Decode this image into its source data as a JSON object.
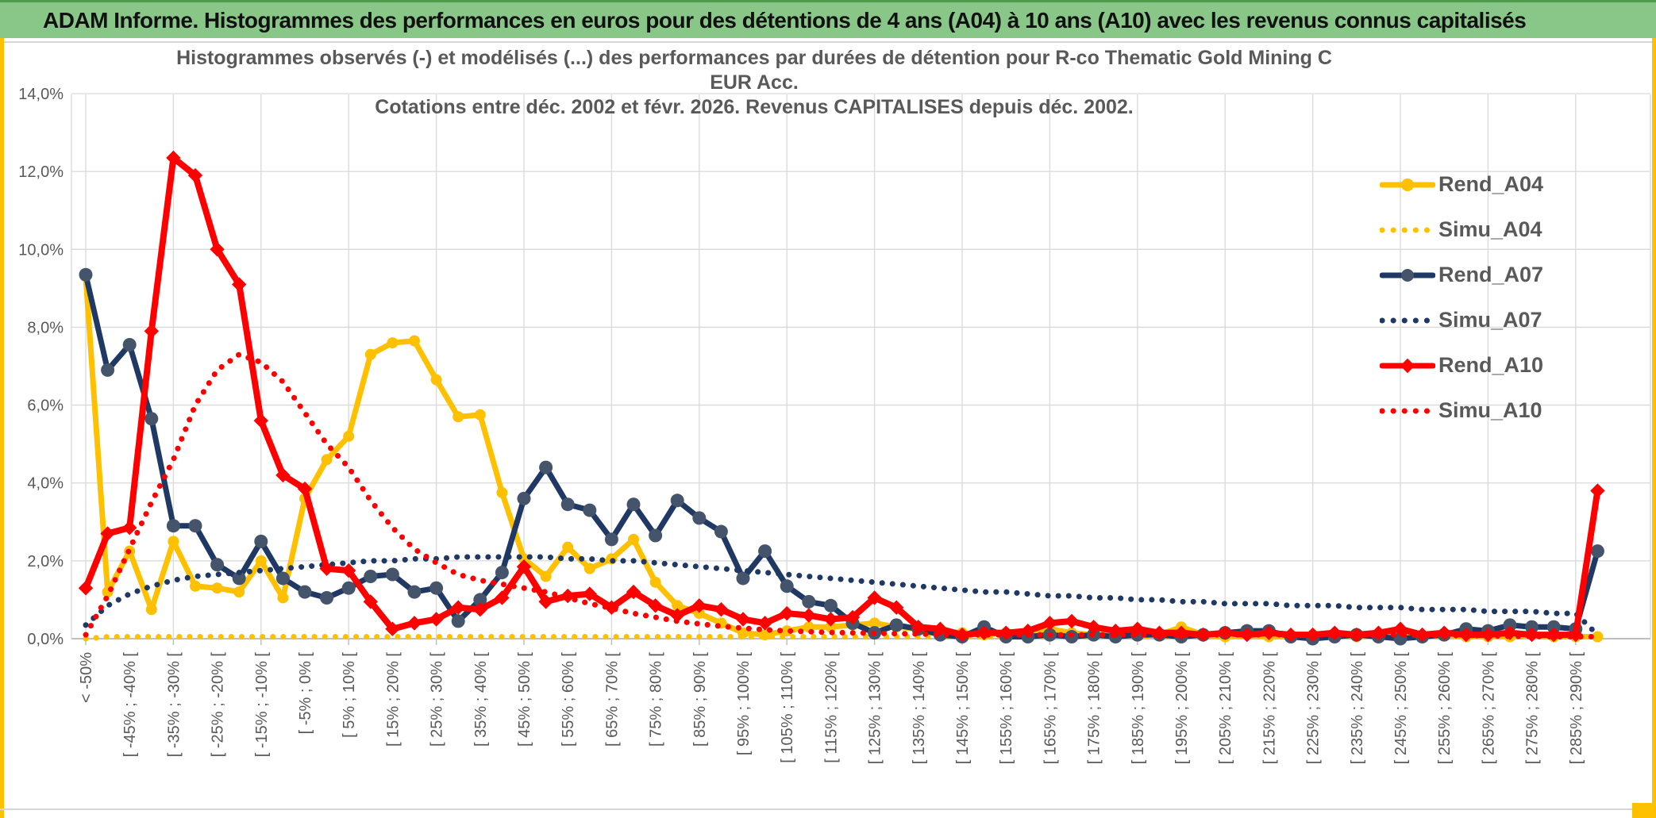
{
  "app": {
    "header_title": "ADAM Informe. Histogrammes des performances en euros pour des détentions de 4 ans (A04) à 10 ans (A10) avec les revenus connus capitalisés",
    "header_color": "#88C788",
    "accent_gold": "#FFC000",
    "text_gray": "#595959"
  },
  "chart_data": {
    "type": "line",
    "title_line1": "Histogrammes observés (-) et modélisés (...) des performances par durées de détention pour R-co Thematic Gold Mining C EUR Acc.",
    "title_line2": "Cotations entre déc. 2002 et févr. 2026. Revenus CAPITALISES depuis déc. 2002.",
    "y_axis": {
      "min": 0,
      "max": 14,
      "step": 2,
      "tick_suffix": "%",
      "decimal_separator": ",",
      "grid": true
    },
    "legend_position": "right",
    "categories": [
      "< -50%",
      "",
      "[ -45% ; -40% [",
      "",
      "[ -35% ; -30% [",
      "",
      "[ -25% ; -20% [",
      "",
      "[ -15% ; -10% [",
      "",
      "[ -5% ; 0% [",
      "",
      "[ 5% ; 10% [",
      "",
      "[ 15% ; 20% [",
      "",
      "[ 25% ; 30% [",
      "",
      "[ 35% ; 40% [",
      "",
      "[ 45% ; 50% [",
      "",
      "[ 55% ; 60% [",
      "",
      "[ 65% ; 70% [",
      "",
      "[ 75% ; 80% [",
      "",
      "[ 85% ; 90% [",
      "",
      "[ 95% ; 100% [",
      "",
      "[ 105% ; 110% [",
      "",
      "[ 115% ; 120% [",
      "",
      "[ 125% ; 130% [",
      "",
      "[ 135% ; 140% [",
      "",
      "[ 145% ; 150% [",
      "",
      "[ 155% ; 160% [",
      "",
      "[ 165% ; 170% [",
      "",
      "[ 175% ; 180% [",
      "",
      "[ 185% ; 190% [",
      "",
      "[ 195% ; 200% [",
      "",
      "[ 205% ; 210% [",
      "",
      "[ 215% ; 220% [",
      "",
      "[ 225% ; 230% [",
      "",
      "[ 235% ; 240% [",
      "",
      "[ 245% ; 250% [",
      "",
      "[ 255% ; 260% [",
      "",
      "[ 265% ; 270% [",
      "",
      "[ 275% ; 280% [",
      "",
      "[ 285% ; 290% [",
      ""
    ],
    "series": [
      {
        "name": "Rend_A04",
        "color": "#FFC000",
        "marker_color": "#FFC000",
        "style": "solid",
        "marker": "circle",
        "values": [
          9.3,
          1.2,
          2.25,
          0.75,
          2.5,
          1.35,
          1.3,
          1.2,
          2.0,
          1.05,
          3.6,
          4.6,
          5.2,
          7.3,
          7.6,
          7.65,
          6.65,
          5.7,
          5.75,
          3.75,
          2.05,
          1.6,
          2.35,
          1.8,
          2.05,
          2.55,
          1.45,
          0.85,
          0.65,
          0.4,
          0.15,
          0.1,
          0.2,
          0.3,
          0.3,
          0.35,
          0.4,
          0.3,
          0.25,
          0.2,
          0.15,
          0.1,
          0.15,
          0.1,
          0.25,
          0.15,
          0.1,
          0.1,
          0.1,
          0.1,
          0.3,
          0.1,
          0.05,
          0.1,
          0.05,
          0.05,
          0.1,
          0.05,
          0.05,
          0.1,
          0.05,
          0.05,
          0.1,
          0.05,
          0.05,
          0.05,
          0.1,
          0.05,
          0.05,
          0.05
        ]
      },
      {
        "name": "Simu_A04",
        "color": "#FFC000",
        "marker_color": "#FFC000",
        "style": "dotted",
        "marker": "none",
        "values": [
          0.0,
          0.05,
          0.05,
          0.05,
          0.05,
          0.05,
          0.05,
          0.05,
          0.05,
          0.05,
          0.05,
          0.05,
          0.05,
          0.05,
          0.05,
          0.05,
          0.05,
          0.05,
          0.05,
          0.05,
          0.05,
          0.05,
          0.05,
          0.05,
          0.05,
          0.05,
          0.05,
          0.05,
          0.05,
          0.05,
          0.05,
          0.05,
          0.05,
          0.05,
          0.05,
          0.05,
          0.05,
          0.05,
          0.05,
          0.05,
          0.05,
          0.05,
          0.05,
          0.05,
          0.05,
          0.05,
          0.05,
          0.05,
          0.05,
          0.05,
          0.05,
          0.05,
          0.05,
          0.05,
          0.05,
          0.05,
          0.05,
          0.05,
          0.05,
          0.05,
          0.05,
          0.05,
          0.05,
          0.05,
          0.05,
          0.05,
          0.05,
          0.05,
          0.05,
          0.05
        ]
      },
      {
        "name": "Rend_A07",
        "color": "#1F3864",
        "marker_color": "#44546A",
        "style": "solid",
        "marker": "circle",
        "values": [
          9.35,
          6.9,
          7.55,
          5.65,
          2.9,
          2.9,
          1.9,
          1.55,
          2.5,
          1.55,
          1.2,
          1.05,
          1.3,
          1.6,
          1.65,
          1.2,
          1.3,
          0.45,
          1.0,
          1.7,
          3.6,
          4.4,
          3.45,
          3.3,
          2.55,
          3.45,
          2.65,
          3.55,
          3.1,
          2.75,
          1.55,
          2.25,
          1.35,
          0.95,
          0.85,
          0.4,
          0.15,
          0.35,
          0.25,
          0.1,
          0.05,
          0.3,
          0.05,
          0.05,
          0.1,
          0.05,
          0.1,
          0.05,
          0.1,
          0.1,
          0.05,
          0.1,
          0.15,
          0.2,
          0.2,
          0.05,
          0.0,
          0.05,
          0.1,
          0.05,
          0.0,
          0.05,
          0.1,
          0.25,
          0.2,
          0.35,
          0.3,
          0.3,
          0.25,
          2.25
        ]
      },
      {
        "name": "Simu_A07",
        "color": "#1F3864",
        "marker_color": "#1F3864",
        "style": "dotted",
        "marker": "none",
        "values": [
          0.35,
          0.85,
          1.15,
          1.35,
          1.5,
          1.6,
          1.65,
          1.7,
          1.75,
          1.8,
          1.85,
          1.9,
          1.95,
          2.0,
          2.0,
          2.05,
          2.05,
          2.1,
          2.1,
          2.1,
          2.1,
          2.1,
          2.05,
          2.05,
          2.0,
          2.0,
          1.95,
          1.9,
          1.85,
          1.8,
          1.75,
          1.7,
          1.65,
          1.6,
          1.55,
          1.5,
          1.45,
          1.4,
          1.35,
          1.3,
          1.25,
          1.2,
          1.2,
          1.15,
          1.1,
          1.1,
          1.05,
          1.05,
          1.0,
          1.0,
          0.95,
          0.95,
          0.9,
          0.9,
          0.9,
          0.85,
          0.85,
          0.85,
          0.8,
          0.8,
          0.8,
          0.75,
          0.75,
          0.75,
          0.7,
          0.7,
          0.7,
          0.65,
          0.65,
          0.1
        ]
      },
      {
        "name": "Rend_A10",
        "color": "#FF0000",
        "marker_color": "#FF0000",
        "style": "solid",
        "marker": "diamond",
        "values": [
          1.3,
          2.7,
          2.85,
          7.9,
          12.35,
          11.9,
          10.0,
          9.1,
          5.6,
          4.2,
          3.85,
          1.8,
          1.75,
          0.95,
          0.25,
          0.4,
          0.5,
          0.8,
          0.75,
          1.05,
          1.85,
          0.95,
          1.1,
          1.15,
          0.8,
          1.2,
          0.85,
          0.6,
          0.85,
          0.75,
          0.5,
          0.4,
          0.65,
          0.6,
          0.5,
          0.55,
          1.05,
          0.8,
          0.3,
          0.25,
          0.1,
          0.15,
          0.15,
          0.2,
          0.4,
          0.45,
          0.3,
          0.2,
          0.25,
          0.15,
          0.15,
          0.1,
          0.15,
          0.1,
          0.15,
          0.1,
          0.1,
          0.15,
          0.1,
          0.15,
          0.25,
          0.1,
          0.15,
          0.1,
          0.1,
          0.15,
          0.1,
          0.1,
          0.1,
          3.8
        ]
      },
      {
        "name": "Simu_A10",
        "color": "#FF0000",
        "marker_color": "#FF0000",
        "style": "dotted",
        "marker": "none",
        "values": [
          0.1,
          1.1,
          2.3,
          3.5,
          4.6,
          6.0,
          6.9,
          7.3,
          7.1,
          6.6,
          5.8,
          5.0,
          4.4,
          3.55,
          2.85,
          2.3,
          1.95,
          1.65,
          1.5,
          1.4,
          1.3,
          1.2,
          1.05,
          0.9,
          0.78,
          0.65,
          0.55,
          0.45,
          0.38,
          0.32,
          0.27,
          0.23,
          0.2,
          0.18,
          0.16,
          0.15,
          0.14,
          0.13,
          0.12,
          0.11,
          0.1,
          0.1,
          0.1,
          0.1,
          0.1,
          0.1,
          0.1,
          0.1,
          0.1,
          0.1,
          0.1,
          0.1,
          0.1,
          0.1,
          0.1,
          0.1,
          0.1,
          0.1,
          0.1,
          0.1,
          0.1,
          0.08,
          0.08,
          0.08,
          0.08,
          0.06,
          0.06,
          0.05,
          0.05,
          0.05
        ]
      }
    ]
  }
}
